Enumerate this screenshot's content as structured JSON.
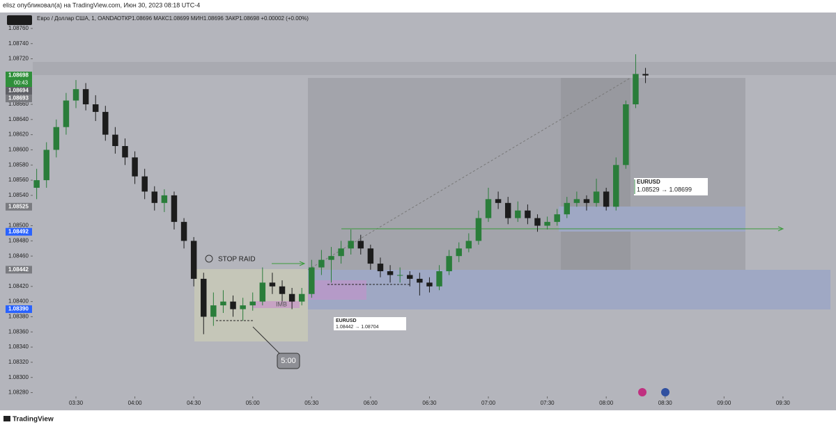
{
  "header": {
    "attribution": "elisz опубликовал(а) на TradingView.com, Июн 30, 2023 08:18 UTC-4",
    "instrument": "Евро / Доллар США, 1, OANDA",
    "ohlc_text": "ОТКР1.08696  МАКС1.08699  МИН1.08696  ЗАКР1.08698  +0.00002 (+0.00%)"
  },
  "footer": {
    "brand": "TradingView"
  },
  "chart_data": {
    "type": "candlestick",
    "up_color": "#2a7d3a",
    "down_color": "#1c1c1c",
    "xlim": [
      "03:08",
      "09:57"
    ],
    "xticks": [
      "03:30",
      "04:00",
      "04:30",
      "05:00",
      "05:30",
      "06:00",
      "06:30",
      "07:00",
      "07:30",
      "08:00",
      "08:30",
      "09:00",
      "09:30"
    ],
    "ylim": [
      1.08275,
      1.08781
    ],
    "yticks": [
      {
        "value": 1.0876,
        "label": "1.08760"
      },
      {
        "value": 1.0874,
        "label": "1.08740"
      },
      {
        "value": 1.0872,
        "label": "1.08720"
      },
      {
        "value": 1.0866,
        "label": "1.08660"
      },
      {
        "value": 1.0864,
        "label": "1.08640"
      },
      {
        "value": 1.0862,
        "label": "1.08620"
      },
      {
        "value": 1.086,
        "label": "1.08600"
      },
      {
        "value": 1.0858,
        "label": "1.08580"
      },
      {
        "value": 1.0856,
        "label": "1.08560"
      },
      {
        "value": 1.0854,
        "label": "1.08540"
      },
      {
        "value": 1.085,
        "label": "1.08500"
      },
      {
        "value": 1.0848,
        "label": "1.08480"
      },
      {
        "value": 1.0846,
        "label": "1.08460"
      },
      {
        "value": 1.0842,
        "label": "1.08420"
      },
      {
        "value": 1.084,
        "label": "1.08400"
      },
      {
        "value": 1.0838,
        "label": "1.08380"
      },
      {
        "value": 1.0836,
        "label": "1.08360"
      },
      {
        "value": 1.0834,
        "label": "1.08340"
      },
      {
        "value": 1.0832,
        "label": "1.08320"
      },
      {
        "value": 1.083,
        "label": "1.08300"
      },
      {
        "value": 1.0828,
        "label": "1.08280"
      }
    ],
    "price_labels": [
      {
        "value": 1.08698,
        "label": "1.08698",
        "color": "#2f8f3a"
      },
      {
        "value": 1.08694,
        "label": "1.08694",
        "color": "#5f6066"
      },
      {
        "value": 1.08693,
        "label": "1.08693",
        "color": "#7a7b80"
      },
      {
        "value": 1.08525,
        "label": "1.08525",
        "color": "#7a7b80"
      },
      {
        "value": 1.08492,
        "label": "1.08492",
        "color": "#2962ff"
      },
      {
        "value": 1.08442,
        "label": "1.08442",
        "color": "#7a7b80"
      },
      {
        "value": 1.0839,
        "label": "1.08390",
        "color": "#2962ff"
      }
    ],
    "countdown": "00:43",
    "annotations": {
      "stop_raid": "STOP RAID",
      "imb": "IMB",
      "duration": "5:00",
      "trade1_symbol": "EURUSD",
      "trade1_range": "1.08442 → 1.08704",
      "trade2_symbol": "EURUSD",
      "trade2_range": "1.08529 → 1.08699"
    },
    "x": [
      "03:10",
      "03:15",
      "03:20",
      "03:25",
      "03:30",
      "03:35",
      "03:40",
      "03:45",
      "03:50",
      "03:55",
      "04:00",
      "04:05",
      "04:10",
      "04:15",
      "04:20",
      "04:25",
      "04:30",
      "04:35",
      "04:40",
      "04:45",
      "04:50",
      "04:55",
      "05:00",
      "05:05",
      "05:10",
      "05:15",
      "05:20",
      "05:25",
      "05:30",
      "05:35",
      "05:40",
      "05:45",
      "05:50",
      "05:55",
      "06:00",
      "06:05",
      "06:10",
      "06:15",
      "06:20",
      "06:25",
      "06:30",
      "06:35",
      "06:40",
      "06:45",
      "06:50",
      "06:55",
      "07:00",
      "07:05",
      "07:10",
      "07:15",
      "07:20",
      "07:25",
      "07:30",
      "07:35",
      "07:40",
      "07:45",
      "07:50",
      "07:55",
      "08:00",
      "08:05",
      "08:10",
      "08:15",
      "08:20"
    ],
    "ohlc": [
      [
        1.0855,
        1.08575,
        1.08535,
        1.0856
      ],
      [
        1.0856,
        1.0861,
        1.0855,
        1.086
      ],
      [
        1.086,
        1.0864,
        1.0859,
        1.0863
      ],
      [
        1.0863,
        1.08675,
        1.0862,
        1.08665
      ],
      [
        1.08665,
        1.08692,
        1.08655,
        1.0868
      ],
      [
        1.0868,
        1.08688,
        1.08652,
        1.0866
      ],
      [
        1.0866,
        1.08672,
        1.08638,
        1.0865
      ],
      [
        1.0865,
        1.08658,
        1.08612,
        1.0862
      ],
      [
        1.0862,
        1.0863,
        1.08595,
        1.08605
      ],
      [
        1.08605,
        1.08615,
        1.0858,
        1.0859
      ],
      [
        1.0859,
        1.08598,
        1.08555,
        1.08565
      ],
      [
        1.08565,
        1.08575,
        1.08535,
        1.08545
      ],
      [
        1.08545,
        1.08552,
        1.0852,
        1.0853
      ],
      [
        1.0853,
        1.08548,
        1.08518,
        1.0854
      ],
      [
        1.0854,
        1.08545,
        1.08495,
        1.08505
      ],
      [
        1.08505,
        1.0851,
        1.0847,
        1.0848
      ],
      [
        1.0848,
        1.08485,
        1.0842,
        1.0843
      ],
      [
        1.0843,
        1.08438,
        1.08357,
        1.0838
      ],
      [
        1.0838,
        1.08412,
        1.08368,
        1.08395
      ],
      [
        1.08395,
        1.08415,
        1.08385,
        1.084
      ],
      [
        1.084,
        1.08408,
        1.0838,
        1.0839
      ],
      [
        1.0839,
        1.08405,
        1.08375,
        1.08395
      ],
      [
        1.08395,
        1.08412,
        1.08388,
        1.084
      ],
      [
        1.084,
        1.08445,
        1.08395,
        1.08425
      ],
      [
        1.08425,
        1.08438,
        1.0841,
        1.0842
      ],
      [
        1.0842,
        1.08428,
        1.084,
        1.0841
      ],
      [
        1.0841,
        1.08418,
        1.0839,
        1.084
      ],
      [
        1.084,
        1.08418,
        1.08395,
        1.0841
      ],
      [
        1.0841,
        1.08455,
        1.08405,
        1.08445
      ],
      [
        1.08445,
        1.08468,
        1.08435,
        1.08455
      ],
      [
        1.08455,
        1.08472,
        1.08425,
        1.0846
      ],
      [
        1.0846,
        1.0848,
        1.0845,
        1.0847
      ],
      [
        1.0847,
        1.08495,
        1.08462,
        1.0848
      ],
      [
        1.0848,
        1.08488,
        1.08462,
        1.0847
      ],
      [
        1.0847,
        1.08475,
        1.08442,
        1.0845
      ],
      [
        1.0845,
        1.08458,
        1.08432,
        1.0844
      ],
      [
        1.0844,
        1.08448,
        1.08425,
        1.08435
      ],
      [
        1.08435,
        1.08445,
        1.08425,
        1.08435
      ],
      [
        1.08435,
        1.0844,
        1.0842,
        1.0843
      ],
      [
        1.0843,
        1.08438,
        1.08408,
        1.08425
      ],
      [
        1.08425,
        1.08432,
        1.08412,
        1.0842
      ],
      [
        1.0842,
        1.08448,
        1.08415,
        1.0844
      ],
      [
        1.0844,
        1.08468,
        1.08435,
        1.0846
      ],
      [
        1.0846,
        1.08478,
        1.08452,
        1.0847
      ],
      [
        1.0847,
        1.0849,
        1.08465,
        1.0848
      ],
      [
        1.0848,
        1.0852,
        1.08475,
        1.0851
      ],
      [
        1.0851,
        1.0855,
        1.08505,
        1.08535
      ],
      [
        1.08535,
        1.08545,
        1.08522,
        1.0853
      ],
      [
        1.0853,
        1.08538,
        1.08502,
        1.0851
      ],
      [
        1.0851,
        1.08532,
        1.08505,
        1.0852
      ],
      [
        1.0852,
        1.08528,
        1.08502,
        1.0851
      ],
      [
        1.0851,
        1.08515,
        1.08492,
        1.085
      ],
      [
        1.085,
        1.08512,
        1.08495,
        1.08505
      ],
      [
        1.08505,
        1.08522,
        1.085,
        1.08515
      ],
      [
        1.08515,
        1.08538,
        1.0851,
        1.0853
      ],
      [
        1.0853,
        1.08545,
        1.08525,
        1.08535
      ],
      [
        1.08535,
        1.0854,
        1.0852,
        1.0853
      ],
      [
        1.0853,
        1.08562,
        1.08525,
        1.08545
      ],
      [
        1.08545,
        1.0855,
        1.0852,
        1.08525
      ],
      [
        1.08525,
        1.0859,
        1.0852,
        1.0858
      ],
      [
        1.0858,
        1.08665,
        1.08575,
        1.0866
      ],
      [
        1.0866,
        1.08726,
        1.08655,
        1.087
      ],
      [
        1.087,
        1.08708,
        1.08688,
        1.08698
      ]
    ]
  }
}
